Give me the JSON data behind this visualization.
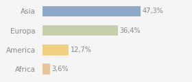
{
  "categories": [
    "Africa",
    "America",
    "Europa",
    "Asia"
  ],
  "values": [
    3.6,
    12.7,
    36.4,
    47.3
  ],
  "labels": [
    "3,6%",
    "12,7%",
    "36,4%",
    "47,3%"
  ],
  "bar_colors": [
    "#e8c49a",
    "#f0d080",
    "#c5cfaa",
    "#8eaac8"
  ],
  "background_color": "#f5f5f5",
  "text_color": "#888888",
  "label_color": "#888888",
  "xlim": [
    0,
    70
  ],
  "figsize": [
    2.8,
    1.2
  ],
  "dpi": 100
}
